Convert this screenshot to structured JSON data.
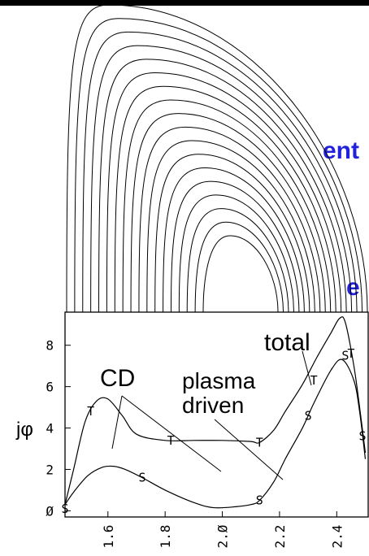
{
  "left_text_fragments": [
    "ent",
    "e"
  ],
  "label_color": "#2222dd",
  "annotations": {
    "total": "total",
    "cd": "CD",
    "plasma_driven_line1": "plasma",
    "plasma_driven_line2": "driven"
  },
  "ylabel": "jφ",
  "chart_data": {
    "type": "line",
    "xlim": [
      1.45,
      2.51
    ],
    "ylim": [
      -0.3,
      9.6
    ],
    "xticks": [
      1.6,
      1.8,
      2.0,
      2.2,
      2.4
    ],
    "xtick_labels": [
      "1.6",
      "1.8",
      "2.Ø",
      "2.2",
      "2.4"
    ],
    "yticks": [
      0,
      2,
      4,
      6,
      8
    ],
    "ytick_labels": [
      "Ø",
      "2",
      "4",
      "6",
      "8"
    ],
    "series": [
      {
        "name": "T",
        "marker_text": "T",
        "x": [
          1.45,
          1.48,
          1.52,
          1.56,
          1.6,
          1.65,
          1.7,
          1.8,
          1.9,
          2.0,
          2.1,
          2.13,
          2.18,
          2.22,
          2.28,
          2.33,
          2.38,
          2.41,
          2.43,
          2.46,
          2.48,
          2.5
        ],
        "y": [
          0.3,
          2.0,
          4.3,
          5.3,
          5.4,
          4.6,
          3.7,
          3.4,
          3.4,
          3.4,
          3.35,
          3.3,
          3.9,
          4.8,
          6.1,
          7.4,
          8.6,
          9.3,
          9.1,
          7.0,
          5.0,
          2.8
        ],
        "markers": [
          [
            1.54,
            4.8
          ],
          [
            1.82,
            3.4
          ],
          [
            2.13,
            3.3
          ],
          [
            2.32,
            6.3
          ],
          [
            2.45,
            7.6
          ]
        ]
      },
      {
        "name": "S",
        "marker_text": "S",
        "x": [
          1.45,
          1.48,
          1.53,
          1.58,
          1.62,
          1.66,
          1.72,
          1.8,
          1.9,
          1.97,
          2.05,
          2.1,
          2.13,
          2.18,
          2.22,
          2.28,
          2.32,
          2.38,
          2.42,
          2.46,
          2.48,
          2.5
        ],
        "y": [
          0.3,
          0.9,
          1.7,
          2.1,
          2.15,
          2.0,
          1.6,
          1.0,
          0.4,
          0.15,
          0.2,
          0.3,
          0.5,
          1.4,
          2.5,
          4.0,
          5.2,
          6.8,
          7.3,
          6.3,
          4.8,
          2.5
        ],
        "markers": [
          [
            1.45,
            0.1
          ],
          [
            1.72,
            1.6
          ],
          [
            2.13,
            0.5
          ],
          [
            2.3,
            4.6
          ],
          [
            2.43,
            7.5
          ],
          [
            2.49,
            3.6
          ]
        ]
      }
    ]
  }
}
